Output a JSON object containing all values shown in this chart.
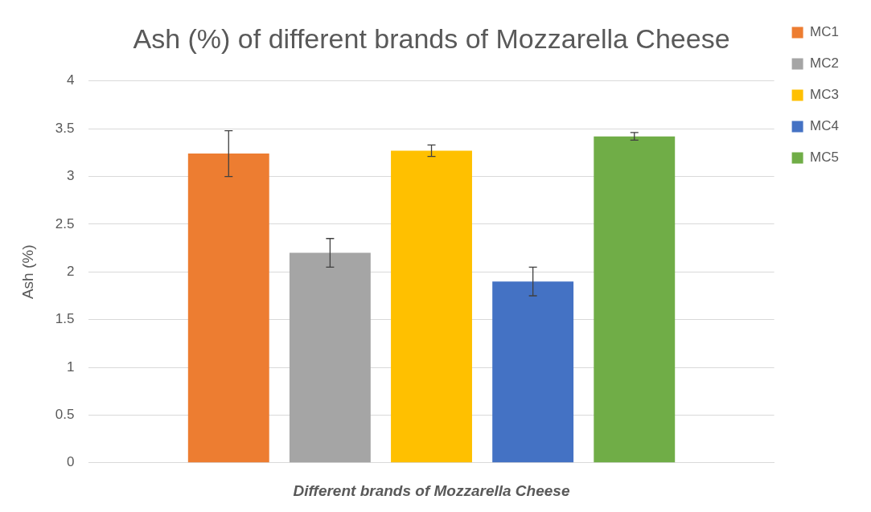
{
  "chart_data": {
    "type": "bar",
    "title": "Ash (%) of different brands of Mozzarella Cheese",
    "xlabel": "Different brands of Mozzarella Cheese",
    "ylabel": "Ash (%)",
    "categories": [
      null
    ],
    "series": [
      {
        "name": "MC1",
        "color": "#ed7d31",
        "values": [
          3.24
        ],
        "errors": [
          0.24
        ]
      },
      {
        "name": "MC2",
        "color": "#a5a5a5",
        "values": [
          2.2
        ],
        "errors": [
          0.15
        ]
      },
      {
        "name": "MC3",
        "color": "#ffc000",
        "values": [
          3.27
        ],
        "errors": [
          0.06
        ]
      },
      {
        "name": "MC4",
        "color": "#4472c4",
        "values": [
          1.9
        ],
        "errors": [
          0.15
        ]
      },
      {
        "name": "MC5",
        "color": "#70ad47",
        "values": [
          3.42
        ],
        "errors": [
          0.04
        ]
      }
    ],
    "ylim": [
      0,
      4
    ],
    "yticks": [
      0,
      0.5,
      1,
      1.5,
      2,
      2.5,
      3,
      3.5,
      4
    ],
    "grid": "y",
    "legend": "top right"
  }
}
